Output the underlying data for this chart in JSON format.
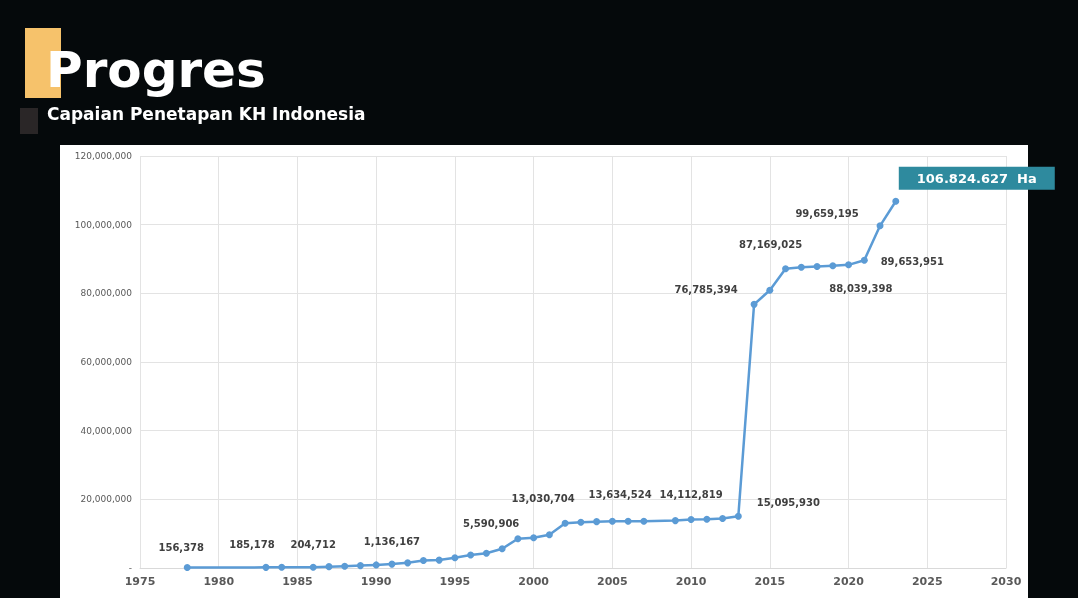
{
  "chart_data": {
    "type": "line",
    "title": "Progres",
    "subtitle": "Capaian Penetapan KH Indonesia",
    "x": [
      1978,
      1983,
      1984,
      1986,
      1987,
      1988,
      1989,
      1990,
      1991,
      1992,
      1993,
      1994,
      1995,
      1996,
      1997,
      1998,
      1999,
      2000,
      2001,
      2002,
      2003,
      2004,
      2005,
      2006,
      2007,
      2009,
      2010,
      2011,
      2012,
      2013,
      2014,
      2015,
      2016,
      2017,
      2018,
      2019,
      2020,
      2021,
      2022,
      2023
    ],
    "series": [
      {
        "color": "#5b9bd5",
        "values": [
          156378,
          185178,
          200000,
          204712,
          400000,
          500000,
          700000,
          900000,
          1136167,
          1500000,
          2200000,
          2300000,
          3000000,
          3800000,
          4300000,
          5590906,
          8500000,
          8800000,
          9700000,
          13030704,
          13300000,
          13500000,
          13600000,
          13634524,
          13600000,
          13800000,
          14112819,
          14200000,
          14400000,
          15095930,
          76785394,
          80900000,
          87169025,
          87600000,
          87800000,
          88039398,
          88300000,
          89653951,
          99659195,
          106824627
        ],
        "value_labels": [
          "156,378",
          "185,178",
          null,
          "204,712",
          null,
          null,
          null,
          null,
          "1,136,167",
          null,
          null,
          null,
          null,
          null,
          null,
          "5,590,906",
          null,
          null,
          null,
          "13,030,704",
          null,
          null,
          null,
          "13,634,524",
          null,
          null,
          "14,112,819",
          null,
          null,
          "15,095,930",
          "76,785,394",
          null,
          "87,169,025",
          null,
          null,
          "88,039,398",
          null,
          "89,653,951",
          "99,659,195",
          "106.824.627  Ha"
        ]
      }
    ],
    "xlim": [
      1975,
      2030
    ],
    "xticks": [
      1975,
      1980,
      1985,
      1990,
      1995,
      2000,
      2005,
      2010,
      2015,
      2020,
      2025,
      2030
    ],
    "ylim": [
      0,
      120000000
    ],
    "yticks": [
      {
        "value": 0,
        "label": "-"
      },
      {
        "value": 20000000,
        "label": "20,000,000"
      },
      {
        "value": 40000000,
        "label": "40,000,000"
      },
      {
        "value": 60000000,
        "label": "60,000,000"
      },
      {
        "value": 80000000,
        "label": "80,000,000"
      },
      {
        "value": 100000000,
        "label": "100,000,000"
      },
      {
        "value": 120000000,
        "label": "120,000,000"
      }
    ],
    "grid": true,
    "marker": "circle",
    "line_style": "solid"
  }
}
